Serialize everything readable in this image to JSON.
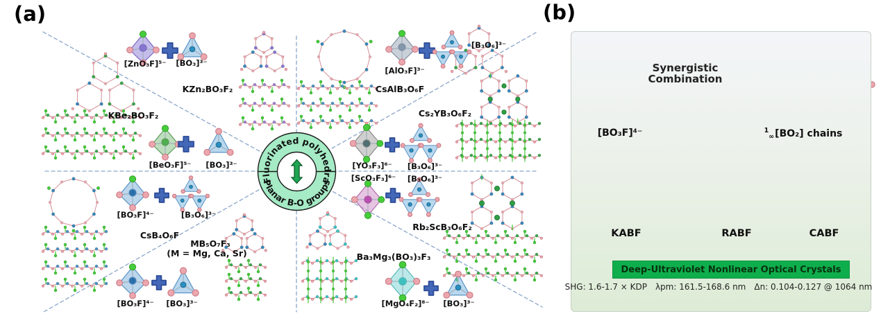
{
  "figure": {
    "panel_a": {
      "label": "(a)",
      "hub": {
        "top_text": "Fluorinated polyhedra",
        "bottom_text": "Planar B-O groups"
      },
      "sectors": [
        {
          "id": "kzn",
          "poly": "[ZnO₃F]⁵⁻",
          "planar": "[BO₃]³⁻",
          "compound": "KZn₂BO₃F₂"
        },
        {
          "id": "kbe",
          "poly": "[BeO₃F]⁵⁻",
          "planar": "[BO₃]³⁻",
          "compound": "KBe₂BO₃F₂"
        },
        {
          "id": "csal",
          "poly": "[AlO₃F]³⁻",
          "planar": "[B₃O₆]³⁻",
          "compound": "CsAlB₃O₆F"
        },
        {
          "id": "csy",
          "poly": "[YO₃F₃]⁶⁻",
          "planar": "[B₃O₆]³⁻",
          "compound": "Cs₂YB₃O₆F₂"
        },
        {
          "id": "rbsc",
          "poly": "[ScO₃F₃]⁶⁻",
          "planar": "[B₃O₆]³⁻",
          "compound": "Rb₂ScB₃O₆F₂"
        },
        {
          "id": "bamg",
          "poly": "[MgO₄F₂]⁸⁻",
          "planar": "[BO₃]³⁻",
          "compound": "Ba₃Mg₃(BO₃)₃F₃"
        },
        {
          "id": "mbo",
          "poly": "[BO₃F]⁴⁻",
          "planar": "[BO₃]³⁻",
          "compound": "MB₅O₇F₃",
          "compound_note": "(M = Mg, Ca, Sr)"
        },
        {
          "id": "csb",
          "poly": "[BO₃F]⁴⁻",
          "planar": "[B₃O₆]³⁻",
          "compound": "CsB₄O₆F"
        }
      ]
    },
    "panel_b": {
      "label": "(b)",
      "combination_title_line1": "Synergistic",
      "combination_title_line2": "Combination",
      "polyhedron_label": "[BO₃F]⁴⁻",
      "chain_label": {
        "sup": "1",
        "sub": "∞",
        "text": "[BO₂] chains"
      },
      "crystals": [
        "KABF",
        "RABF",
        "CABF"
      ],
      "banner": "Deep-Ultraviolet Nonlinear Optical Crystals",
      "properties": [
        "SHG: 1.6-1.7 × KDP",
        "λpm: 161.5-168.6 nm",
        "Δn: 0.104-0.127 @ 1064 nm"
      ]
    },
    "colors": {
      "banner_green": "#0fae4d",
      "hub_mint": "#a5ebc5",
      "plus_blue": "#4468b8",
      "fluorine_green": "#47cd3c",
      "oxygen_pink": "#eba6ae",
      "boron_blue": "#2b8fc0",
      "dashed_line": "#8aa6c9"
    }
  }
}
